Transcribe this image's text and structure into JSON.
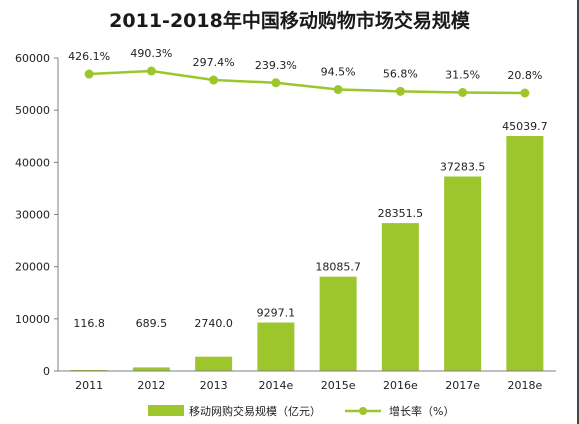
{
  "chart_data": {
    "type": "bar",
    "title": "2011-2018年中国移动购物市场交易规模",
    "categories": [
      "2011",
      "2012",
      "2013",
      "2014e",
      "2015e",
      "2016e",
      "2017e",
      "2018e"
    ],
    "series": [
      {
        "name": "移动网购交易规模（亿元）",
        "type": "bar",
        "values": [
          116.8,
          689.5,
          2740.0,
          9297.1,
          18085.7,
          28351.5,
          37283.5,
          45039.7
        ],
        "labels": [
          "116.8",
          "689.5",
          "2740.0",
          "9297.1",
          "18085.7",
          "28351.5",
          "37283.5",
          "45039.7"
        ]
      },
      {
        "name": "增长率（%）",
        "type": "line",
        "values": [
          426.1,
          490.3,
          297.4,
          239.3,
          94.5,
          56.8,
          31.5,
          20.8
        ],
        "labels": [
          "426.1%",
          "490.3%",
          "297.4%",
          "239.3%",
          "94.5%",
          "56.8%",
          "31.5%",
          "20.8%"
        ]
      }
    ],
    "ylim": [
      0,
      60000
    ],
    "yticks": [
      "0",
      "10000",
      "20000",
      "30000",
      "40000",
      "50000",
      "60000"
    ],
    "grid": false,
    "legend_position": "bottom",
    "colors": {
      "bar": "#9dc62c",
      "line": "#9dc62c"
    }
  }
}
